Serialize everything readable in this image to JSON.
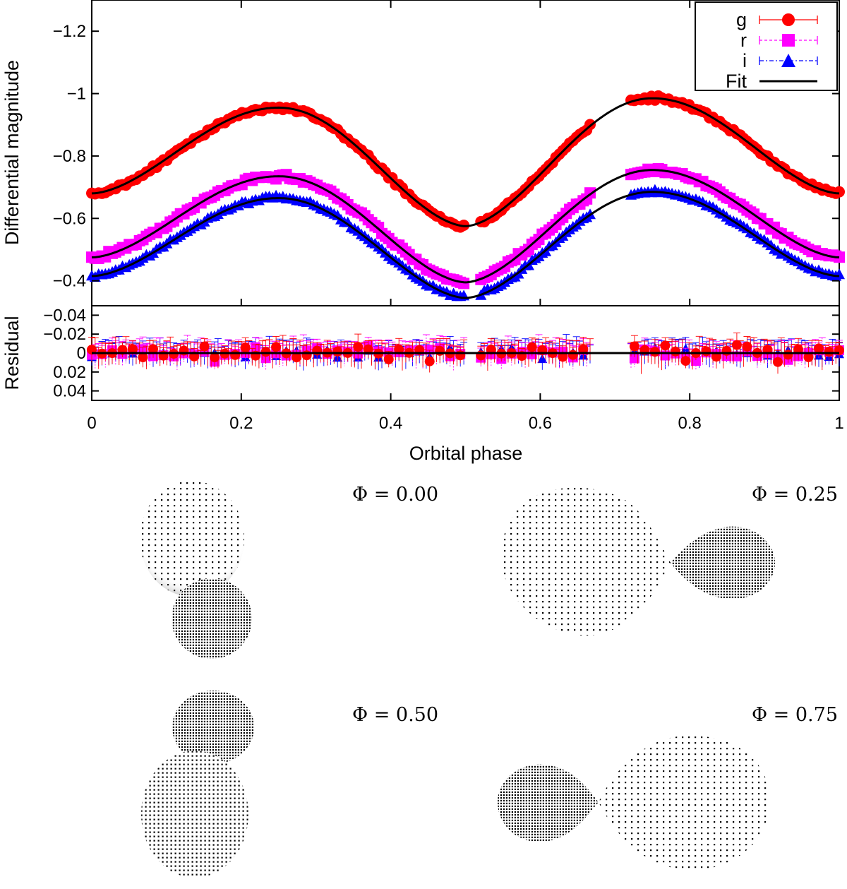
{
  "chart_data": [
    {
      "type": "scatter",
      "panel": "light-curve",
      "xlabel": "Orbital phase",
      "ylabel": "Differential magnitude",
      "xlim": [
        0,
        1
      ],
      "ylim": [
        -1.3,
        -0.32
      ],
      "y_inverted": true,
      "grid": false,
      "legend_position": "top-right",
      "x_ticks": [
        0,
        0.2,
        0.4,
        0.6,
        0.8,
        1
      ],
      "x_tick_labels": [
        "0",
        "0.2",
        "0.4",
        "0.6",
        "0.8",
        "1"
      ],
      "y_ticks": [
        -1.2,
        -1.0,
        -0.8,
        -0.6,
        -0.4
      ],
      "y_tick_labels": [
        "−1.2",
        "−1",
        "−0.8",
        "−0.6",
        "−0.4"
      ],
      "gaps": [
        [
          0.5,
          0.52
        ],
        [
          0.67,
          0.72
        ]
      ],
      "series": [
        {
          "name": "g",
          "color": "#ff0000",
          "marker": "circle",
          "errorbar": true,
          "fit_params": {
            "base": -0.68,
            "max1": -0.955,
            "max2": -0.985,
            "min2": -0.575
          },
          "noise": 0.008,
          "n_points": 220
        },
        {
          "name": "r",
          "color": "#ff00ff",
          "marker": "square",
          "errorbar": true,
          "fit_params": {
            "base": -0.475,
            "max1": -0.735,
            "max2": -0.755,
            "min2": -0.395
          },
          "noise": 0.009,
          "n_points": 220
        },
        {
          "name": "i",
          "color": "#0000ff",
          "marker": "triangle",
          "errorbar": true,
          "fit_params": {
            "base": -0.415,
            "max1": -0.665,
            "max2": -0.685,
            "min2": -0.345
          },
          "noise": 0.007,
          "n_points": 220
        },
        {
          "name": "Fit",
          "color": "#000000",
          "marker": "line",
          "errorbar": false
        }
      ]
    },
    {
      "type": "scatter",
      "panel": "residuals",
      "xlabel": "Orbital phase",
      "ylabel": "Residual",
      "xlim": [
        0,
        1
      ],
      "ylim": [
        -0.05,
        0.05
      ],
      "y_inverted": true,
      "y_ticks": [
        -0.04,
        -0.02,
        0,
        0.02,
        0.04
      ],
      "y_tick_labels": [
        "−0.04",
        "−0.02",
        "0",
        "0.02",
        "0.04"
      ],
      "zero_line": true,
      "series": [
        {
          "name": "g",
          "color": "#ff0000",
          "marker": "circle",
          "scatter": 0.009
        },
        {
          "name": "r",
          "color": "#ff00ff",
          "marker": "square",
          "scatter": 0.009
        },
        {
          "name": "i",
          "color": "#0000ff",
          "marker": "triangle",
          "scatter": 0.007
        }
      ]
    }
  ],
  "legend": {
    "labels": [
      "g",
      "r",
      "i",
      "Fit"
    ]
  },
  "models": {
    "labels": [
      "Φ = 0.00",
      "Φ = 0.25",
      "Φ = 0.50",
      "Φ = 0.75"
    ],
    "phases": [
      0.0,
      0.25,
      0.5,
      0.75
    ]
  }
}
